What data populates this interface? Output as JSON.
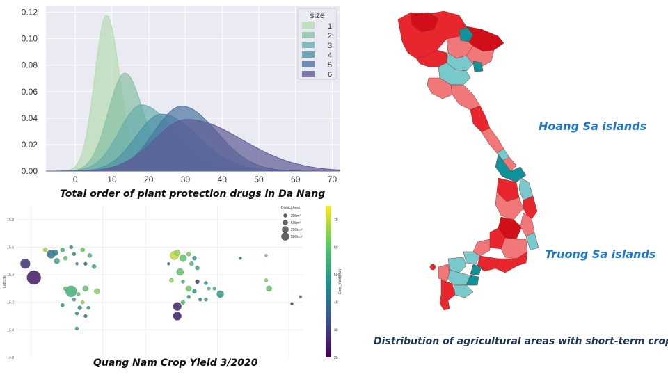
{
  "kde_chart": {
    "chart_data": {
      "type": "area",
      "title": "",
      "xlabel": "",
      "ylabel": "",
      "xlim": [
        -8,
        72
      ],
      "ylim": [
        0,
        0.125
      ],
      "x_ticks": [
        "0",
        "10",
        "20",
        "30",
        "40",
        "50",
        "60",
        "70"
      ],
      "x_tick_values": [
        0,
        10,
        20,
        30,
        40,
        50,
        60,
        70
      ],
      "y_ticks": [
        "0.00",
        "0.02",
        "0.04",
        "0.06",
        "0.08",
        "0.10",
        "0.12"
      ],
      "y_tick_values": [
        0,
        0.02,
        0.04,
        0.06,
        0.08,
        0.1,
        0.12
      ],
      "grid": true,
      "legend_title": "size",
      "legend_position": "top-right",
      "series": [
        {
          "name": "1",
          "color": "#b5dcb0",
          "peak_x": 8.5,
          "peak_y": 0.118,
          "spread_left": 3.2,
          "spread_right": 3.6
        },
        {
          "name": "2",
          "color": "#86c0a4",
          "peak_x": 13.5,
          "peak_y": 0.074,
          "spread_left": 4.5,
          "spread_right": 5.0
        },
        {
          "name": "3",
          "color": "#6aaeab",
          "peak_x": 18.0,
          "peak_y": 0.05,
          "spread_left": 6.0,
          "spread_right": 9.0
        },
        {
          "name": "4",
          "color": "#4d93a8",
          "peak_x": 23.5,
          "peak_y": 0.043,
          "spread_left": 7.0,
          "spread_right": 10.0
        },
        {
          "name": "5",
          "color": "#4a76a0",
          "peak_x": 29.0,
          "peak_y": 0.049,
          "spread_left": 7.5,
          "spread_right": 9.5
        },
        {
          "name": "6",
          "color": "#5e5b96",
          "peak_x": 30.5,
          "peak_y": 0.039,
          "spread_left": 9.0,
          "spread_right": 15.0
        }
      ]
    },
    "caption": "Total order of plant protection drugs in Da Nang"
  },
  "scatter_chart": {
    "chart_data": {
      "type": "scatter",
      "title": "",
      "xlabel": "",
      "ylabel": "Latitude",
      "ylim": [
        14.8,
        15.9
      ],
      "xlim": [
        0,
        100
      ],
      "y_ticks": [
        "15.8",
        "15.6",
        "15.4",
        "15.2",
        "15.0",
        "14.8"
      ],
      "y_tick_values": [
        15.8,
        15.6,
        15.4,
        15.2,
        15.0,
        14.8
      ],
      "grid": true,
      "size_legend_title": "District Area",
      "size_legend": [
        {
          "label": "20km²",
          "r": 2.5
        },
        {
          "label": "50km²",
          "r": 3.5
        },
        {
          "label": "200km²",
          "r": 4.5
        },
        {
          "label": "500km²",
          "r": 5.5
        }
      ],
      "size_legend_position": "top-right",
      "colorbar_label": "Crop_Yield(t/ha)",
      "colorbar_ticks": [
        "70",
        "60",
        "50",
        "40",
        "30",
        "20"
      ],
      "colorbar_tick_values": [
        70,
        60,
        50,
        40,
        30,
        20
      ],
      "colorbar_range": [
        20,
        75
      ],
      "points": [
        {
          "x": 3,
          "y": 15.48,
          "r": 7,
          "v": 28
        },
        {
          "x": 6,
          "y": 15.38,
          "r": 10,
          "v": 24
        },
        {
          "x": 10,
          "y": 15.58,
          "r": 3,
          "v": 68
        },
        {
          "x": 12,
          "y": 15.55,
          "r": 6,
          "v": 40
        },
        {
          "x": 13.5,
          "y": 15.56,
          "r": 4,
          "v": 46
        },
        {
          "x": 14,
          "y": 15.5,
          "r": 4,
          "v": 52
        },
        {
          "x": 16,
          "y": 15.58,
          "r": 3,
          "v": 55
        },
        {
          "x": 17,
          "y": 15.52,
          "r": 3,
          "v": 60
        },
        {
          "x": 19,
          "y": 15.6,
          "r": 2.5,
          "v": 50
        },
        {
          "x": 20,
          "y": 15.55,
          "r": 2.5,
          "v": 48
        },
        {
          "x": 21,
          "y": 15.48,
          "r": 2,
          "v": 45
        },
        {
          "x": 23,
          "y": 15.58,
          "r": 3,
          "v": 62
        },
        {
          "x": 24,
          "y": 15.48,
          "r": 2.5,
          "v": 40
        },
        {
          "x": 25.5,
          "y": 15.54,
          "r": 3,
          "v": 58
        },
        {
          "x": 27,
          "y": 15.46,
          "r": 3,
          "v": 52
        },
        {
          "x": 17,
          "y": 15.3,
          "r": 3,
          "v": 62
        },
        {
          "x": 19,
          "y": 15.28,
          "r": 8,
          "v": 55
        },
        {
          "x": 16,
          "y": 15.18,
          "r": 2.5,
          "v": 48
        },
        {
          "x": 20,
          "y": 15.22,
          "r": 2.5,
          "v": 52
        },
        {
          "x": 21.5,
          "y": 15.26,
          "r": 2.5,
          "v": 58
        },
        {
          "x": 22,
          "y": 15.16,
          "r": 3,
          "v": 45
        },
        {
          "x": 23,
          "y": 15.2,
          "r": 2.5,
          "v": 66
        },
        {
          "x": 24,
          "y": 15.3,
          "r": 4,
          "v": 60
        },
        {
          "x": 25,
          "y": 15.16,
          "r": 2.5,
          "v": 50
        },
        {
          "x": 28,
          "y": 15.28,
          "r": 4,
          "v": 64
        },
        {
          "x": 21,
          "y": 15.12,
          "r": 2.5,
          "v": 46
        },
        {
          "x": 24,
          "y": 15.1,
          "r": 2.5,
          "v": 42
        },
        {
          "x": 21,
          "y": 15.01,
          "r": 2.5,
          "v": 50
        },
        {
          "x": 55,
          "y": 15.54,
          "r": 6,
          "v": 70
        },
        {
          "x": 56,
          "y": 15.56,
          "r": 4,
          "v": 66
        },
        {
          "x": 58,
          "y": 15.52,
          "r": 5,
          "v": 60
        },
        {
          "x": 60,
          "y": 15.55,
          "r": 3,
          "v": 63
        },
        {
          "x": 61,
          "y": 15.48,
          "r": 3,
          "v": 58
        },
        {
          "x": 62,
          "y": 15.52,
          "r": 3,
          "v": 48
        },
        {
          "x": 63,
          "y": 15.45,
          "r": 3,
          "v": 55
        },
        {
          "x": 53,
          "y": 15.48,
          "r": 2,
          "v": 40
        },
        {
          "x": 54,
          "y": 15.36,
          "r": 3,
          "v": 66
        },
        {
          "x": 57,
          "y": 15.42,
          "r": 5,
          "v": 60
        },
        {
          "x": 58,
          "y": 15.35,
          "r": 2.5,
          "v": 54
        },
        {
          "x": 60,
          "y": 15.3,
          "r": 4,
          "v": 62
        },
        {
          "x": 62,
          "y": 15.28,
          "r": 3,
          "v": 50
        },
        {
          "x": 64,
          "y": 15.22,
          "r": 2.5,
          "v": 44
        },
        {
          "x": 56,
          "y": 15.17,
          "r": 6,
          "v": 26
        },
        {
          "x": 56,
          "y": 15.1,
          "r": 6,
          "v": 25
        },
        {
          "x": 58,
          "y": 15.2,
          "r": 3,
          "v": 58
        },
        {
          "x": 60,
          "y": 15.24,
          "r": 2.5,
          "v": 52
        },
        {
          "x": 63,
          "y": 15.35,
          "r": 3,
          "v": 30
        },
        {
          "x": 66,
          "y": 15.34,
          "r": 2.5,
          "v": 48
        },
        {
          "x": 67,
          "y": 15.3,
          "r": 2.5,
          "v": 60
        },
        {
          "x": 66,
          "y": 15.22,
          "r": 2.5,
          "v": 54
        },
        {
          "x": 69,
          "y": 15.3,
          "r": 2.5,
          "v": 55
        },
        {
          "x": 71,
          "y": 15.26,
          "r": 5,
          "v": 50
        },
        {
          "x": 78,
          "y": 15.52,
          "r": 2,
          "v": 40
        },
        {
          "x": 87,
          "y": 15.54,
          "r": 2,
          "v": 62
        },
        {
          "x": 88,
          "y": 15.3,
          "r": 4,
          "v": 60
        },
        {
          "x": 87,
          "y": 15.36,
          "r": 2.5,
          "v": 64
        },
        {
          "x": 96,
          "y": 15.19,
          "r": 2,
          "v": 26
        },
        {
          "x": 99,
          "y": 15.24,
          "r": 2,
          "v": 42
        }
      ]
    },
    "caption": "Quang Nam Crop Yield 3/2020"
  },
  "map": {
    "caption": "Distribution of agricultural areas with short-term crops",
    "hoang_sa": "Hoang Sa islands",
    "truong_sa": "Truong Sa islands",
    "colors": {
      "red": "#e8262e",
      "dark_red": "#d10f18",
      "salmon": "#f07878",
      "teal": "#77c9cc",
      "dark_teal": "#0f9298"
    }
  }
}
